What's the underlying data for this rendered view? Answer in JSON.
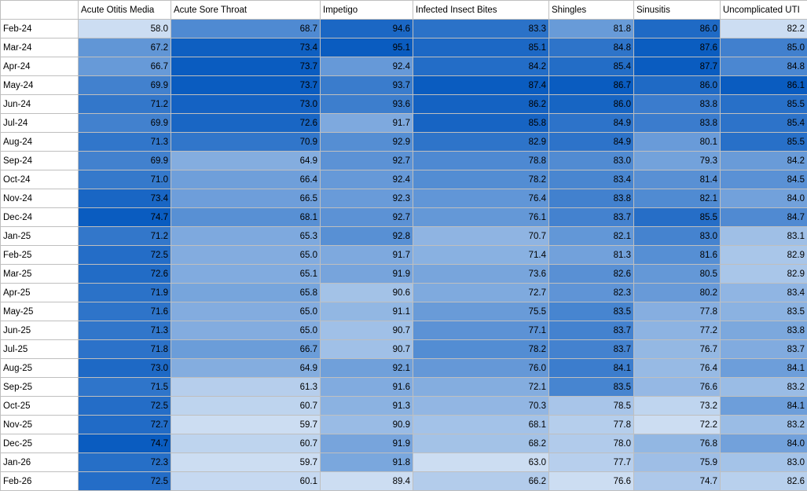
{
  "columns": [
    "Acute Otitis Media",
    "Acute Sore Throat",
    "Impetigo",
    "Infected Insect Bites",
    "Shingles",
    "Sinusitis",
    "Uncomplicated UTI"
  ],
  "rows": [
    {
      "label": "Feb-24",
      "values": [
        "58.0",
        "68.7",
        "94.6",
        "83.3",
        "81.8",
        "86.0",
        "82.2"
      ]
    },
    {
      "label": "Mar-24",
      "values": [
        "67.2",
        "73.4",
        "95.1",
        "85.1",
        "84.8",
        "87.6",
        "85.0"
      ]
    },
    {
      "label": "Apr-24",
      "values": [
        "66.7",
        "73.7",
        "92.4",
        "84.2",
        "85.4",
        "87.7",
        "84.8"
      ]
    },
    {
      "label": "May-24",
      "values": [
        "69.9",
        "73.7",
        "93.7",
        "87.4",
        "86.7",
        "86.0",
        "86.1"
      ]
    },
    {
      "label": "Jun-24",
      "values": [
        "71.2",
        "73.0",
        "93.6",
        "86.2",
        "86.0",
        "83.8",
        "85.5"
      ]
    },
    {
      "label": "Jul-24",
      "values": [
        "69.9",
        "72.6",
        "91.7",
        "85.8",
        "84.9",
        "83.8",
        "85.4"
      ]
    },
    {
      "label": "Aug-24",
      "values": [
        "71.3",
        "70.9",
        "92.9",
        "82.9",
        "84.9",
        "80.1",
        "85.5"
      ]
    },
    {
      "label": "Sep-24",
      "values": [
        "69.9",
        "64.9",
        "92.7",
        "78.8",
        "83.0",
        "79.3",
        "84.2"
      ]
    },
    {
      "label": "Oct-24",
      "values": [
        "71.0",
        "66.4",
        "92.4",
        "78.2",
        "83.4",
        "81.4",
        "84.5"
      ]
    },
    {
      "label": "Nov-24",
      "values": [
        "73.4",
        "66.5",
        "92.3",
        "76.4",
        "83.8",
        "82.1",
        "84.0"
      ]
    },
    {
      "label": "Dec-24",
      "values": [
        "74.7",
        "68.1",
        "92.7",
        "76.1",
        "83.7",
        "85.5",
        "84.7"
      ]
    },
    {
      "label": "Jan-25",
      "values": [
        "71.2",
        "65.3",
        "92.8",
        "70.7",
        "82.1",
        "83.0",
        "83.1"
      ]
    },
    {
      "label": "Feb-25",
      "values": [
        "72.5",
        "65.0",
        "91.7",
        "71.4",
        "81.3",
        "81.6",
        "82.9"
      ]
    },
    {
      "label": "Mar-25",
      "values": [
        "72.6",
        "65.1",
        "91.9",
        "73.6",
        "82.6",
        "80.5",
        "82.9"
      ]
    },
    {
      "label": "Apr-25",
      "values": [
        "71.9",
        "65.8",
        "90.6",
        "72.7",
        "82.3",
        "80.2",
        "83.4"
      ]
    },
    {
      "label": "May-25",
      "values": [
        "71.6",
        "65.0",
        "91.1",
        "75.5",
        "83.5",
        "77.8",
        "83.5"
      ]
    },
    {
      "label": "Jun-25",
      "values": [
        "71.3",
        "65.0",
        "90.7",
        "77.1",
        "83.7",
        "77.2",
        "83.8"
      ]
    },
    {
      "label": "Jul-25",
      "values": [
        "71.8",
        "66.7",
        "90.7",
        "78.2",
        "83.7",
        "76.7",
        "83.7"
      ]
    },
    {
      "label": "Aug-25",
      "values": [
        "73.0",
        "64.9",
        "92.1",
        "76.0",
        "84.1",
        "76.4",
        "84.1"
      ]
    },
    {
      "label": "Sep-25",
      "values": [
        "71.5",
        "61.3",
        "91.6",
        "72.1",
        "83.5",
        "76.6",
        "83.2"
      ]
    },
    {
      "label": "Oct-25",
      "values": [
        "72.5",
        "60.7",
        "91.3",
        "70.3",
        "78.5",
        "73.2",
        "84.1"
      ]
    },
    {
      "label": "Nov-25",
      "values": [
        "72.7",
        "59.7",
        "90.9",
        "68.1",
        "77.8",
        "72.2",
        "83.2"
      ]
    },
    {
      "label": "Dec-25",
      "values": [
        "74.7",
        "60.7",
        "91.9",
        "68.2",
        "78.0",
        "76.8",
        "84.0"
      ]
    },
    {
      "label": "Jan-26",
      "values": [
        "72.3",
        "59.7",
        "91.8",
        "63.0",
        "77.7",
        "75.9",
        "83.0"
      ]
    },
    {
      "label": "Feb-26",
      "values": [
        "72.5",
        "60.1",
        "89.4",
        "66.2",
        "76.6",
        "74.7",
        "82.6"
      ]
    }
  ],
  "colors": {
    "scale_low": "#ccddf2",
    "scale_high": "#0a5cc0",
    "gridline": "#bfbfbf",
    "header_bg": "#ffffff",
    "text": "#000000"
  }
}
